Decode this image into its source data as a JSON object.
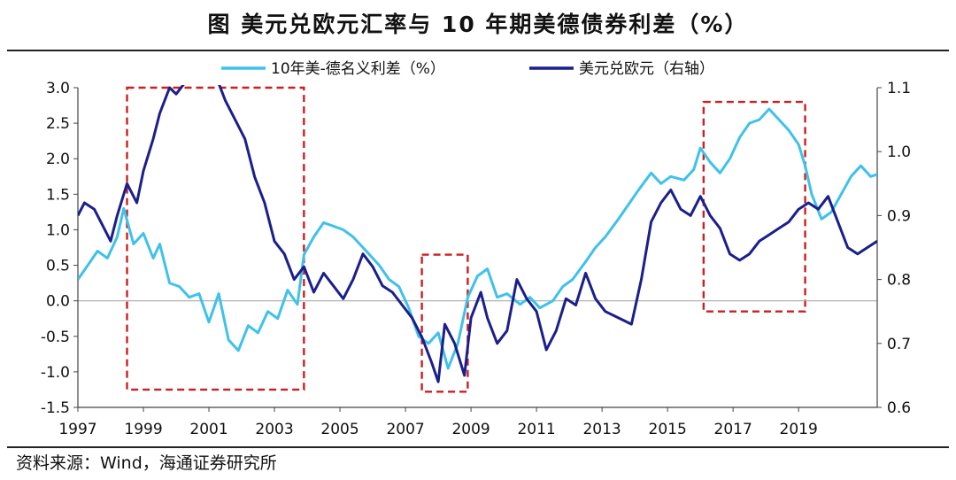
{
  "title": "图  美元兑欧元汇率与 10 年期美德债券利差（%）",
  "source": "资料来源：Wind，海通证券研究所",
  "chart_data": {
    "type": "line",
    "x_ticks": [
      "1997",
      "1999",
      "2001",
      "2003",
      "2005",
      "2007",
      "2009",
      "2011",
      "2013",
      "2015",
      "2017",
      "2019"
    ],
    "y_left": {
      "ylim": [
        -1.5,
        3.0
      ],
      "ticks": [
        "3.0",
        "2.5",
        "2.0",
        "1.5",
        "1.0",
        "0.5",
        "0.0",
        "-0.5",
        "-1.0",
        "-1.5"
      ]
    },
    "y_right": {
      "ylim": [
        0.6,
        1.1
      ],
      "ticks": [
        "1.1",
        "1.0",
        "0.9",
        "0.8",
        "0.7",
        "0.6"
      ]
    },
    "legend_placement": "top-center",
    "grid": false,
    "colors": {
      "spread": "#3fc1eb",
      "usdeur": "#1a1f8c",
      "highlight": "#cc1f1f",
      "zero_line": "#aaaaaa"
    },
    "series": [
      {
        "name": "10年美-德名义利差（%）",
        "axis": "left",
        "x": [
          1997.0,
          1997.3,
          1997.6,
          1997.9,
          1998.2,
          1998.4,
          1998.7,
          1999.0,
          1999.3,
          1999.5,
          1999.8,
          2000.1,
          2000.4,
          2000.7,
          2001.0,
          2001.3,
          2001.6,
          2001.9,
          2002.2,
          2002.5,
          2002.8,
          2003.1,
          2003.4,
          2003.7,
          2003.9,
          2004.2,
          2004.5,
          2004.8,
          2005.1,
          2005.4,
          2005.8,
          2006.2,
          2006.5,
          2006.8,
          2007.1,
          2007.4,
          2007.7,
          2008.0,
          2008.3,
          2008.6,
          2008.9,
          2009.2,
          2009.5,
          2009.8,
          2010.1,
          2010.5,
          2010.8,
          2011.1,
          2011.5,
          2011.8,
          2012.1,
          2012.5,
          2012.8,
          2013.1,
          2013.5,
          2013.8,
          2014.1,
          2014.5,
          2014.8,
          2015.1,
          2015.5,
          2015.8,
          2016.0,
          2016.3,
          2016.6,
          2016.9,
          2017.2,
          2017.5,
          2017.8,
          2018.1,
          2018.4,
          2018.7,
          2019.0,
          2019.2,
          2019.4,
          2019.7,
          2020.0,
          2020.3,
          2020.6,
          2020.9,
          2021.2,
          2021.4
        ],
        "values": [
          0.3,
          0.5,
          0.7,
          0.6,
          0.9,
          1.3,
          0.8,
          0.95,
          0.6,
          0.8,
          0.25,
          0.2,
          0.05,
          0.1,
          -0.3,
          0.1,
          -0.55,
          -0.7,
          -0.35,
          -0.45,
          -0.15,
          -0.25,
          0.15,
          -0.05,
          0.65,
          0.9,
          1.1,
          1.05,
          1.0,
          0.9,
          0.7,
          0.5,
          0.3,
          0.2,
          -0.1,
          -0.5,
          -0.6,
          -0.45,
          -0.95,
          -0.6,
          0.05,
          0.35,
          0.45,
          0.05,
          0.1,
          -0.05,
          0.05,
          -0.1,
          0.0,
          0.2,
          0.3,
          0.55,
          0.75,
          0.9,
          1.15,
          1.35,
          1.55,
          1.8,
          1.65,
          1.75,
          1.7,
          1.85,
          2.15,
          1.95,
          1.8,
          2.0,
          2.3,
          2.5,
          2.55,
          2.7,
          2.55,
          2.4,
          2.2,
          1.9,
          1.5,
          1.15,
          1.25,
          1.5,
          1.75,
          1.9,
          1.75,
          1.78
        ]
      },
      {
        "name": "美元兑欧元（右轴）",
        "axis": "right",
        "x": [
          1997.0,
          1997.2,
          1997.5,
          1997.8,
          1998.0,
          1998.2,
          1998.5,
          1998.8,
          1999.0,
          1999.3,
          1999.5,
          1999.8,
          2000.0,
          2000.3,
          2000.6,
          2000.9,
          2001.2,
          2001.5,
          2001.8,
          2002.1,
          2002.4,
          2002.7,
          2003.0,
          2003.3,
          2003.6,
          2003.9,
          2004.2,
          2004.5,
          2004.8,
          2005.1,
          2005.4,
          2005.7,
          2006.0,
          2006.3,
          2006.6,
          2006.9,
          2007.2,
          2007.5,
          2007.8,
          2008.0,
          2008.2,
          2008.5,
          2008.8,
          2009.0,
          2009.3,
          2009.5,
          2009.8,
          2010.1,
          2010.4,
          2010.7,
          2011.0,
          2011.3,
          2011.6,
          2011.9,
          2012.2,
          2012.5,
          2012.8,
          2013.1,
          2013.5,
          2013.9,
          2014.2,
          2014.5,
          2014.8,
          2015.1,
          2015.4,
          2015.7,
          2016.0,
          2016.3,
          2016.6,
          2016.9,
          2017.2,
          2017.5,
          2017.8,
          2018.1,
          2018.4,
          2018.7,
          2019.0,
          2019.3,
          2019.6,
          2019.9,
          2020.2,
          2020.5,
          2020.8,
          2021.1,
          2021.4
        ],
        "values": [
          0.9,
          0.92,
          0.91,
          0.88,
          0.86,
          0.9,
          0.95,
          0.92,
          0.97,
          1.02,
          1.06,
          1.1,
          1.09,
          1.11,
          1.14,
          1.16,
          1.12,
          1.08,
          1.05,
          1.02,
          0.96,
          0.92,
          0.86,
          0.84,
          0.8,
          0.82,
          0.78,
          0.81,
          0.79,
          0.77,
          0.8,
          0.84,
          0.82,
          0.79,
          0.78,
          0.76,
          0.74,
          0.71,
          0.67,
          0.64,
          0.73,
          0.7,
          0.65,
          0.74,
          0.78,
          0.74,
          0.7,
          0.72,
          0.8,
          0.77,
          0.75,
          0.69,
          0.72,
          0.77,
          0.76,
          0.81,
          0.77,
          0.75,
          0.74,
          0.73,
          0.8,
          0.89,
          0.92,
          0.94,
          0.91,
          0.9,
          0.93,
          0.9,
          0.88,
          0.84,
          0.83,
          0.84,
          0.86,
          0.87,
          0.88,
          0.89,
          0.91,
          0.92,
          0.91,
          0.93,
          0.89,
          0.85,
          0.84,
          0.85,
          0.86
        ]
      }
    ],
    "highlight_boxes": [
      {
        "x_range": [
          1998.5,
          2003.9
        ],
        "y_range_left": [
          -1.25,
          3.0
        ]
      },
      {
        "x_range": [
          2007.5,
          2008.9
        ],
        "y_range_left": [
          -1.28,
          0.65
        ]
      },
      {
        "x_range": [
          2016.1,
          2019.2
        ],
        "y_range_left": [
          -0.15,
          2.8
        ]
      }
    ]
  }
}
